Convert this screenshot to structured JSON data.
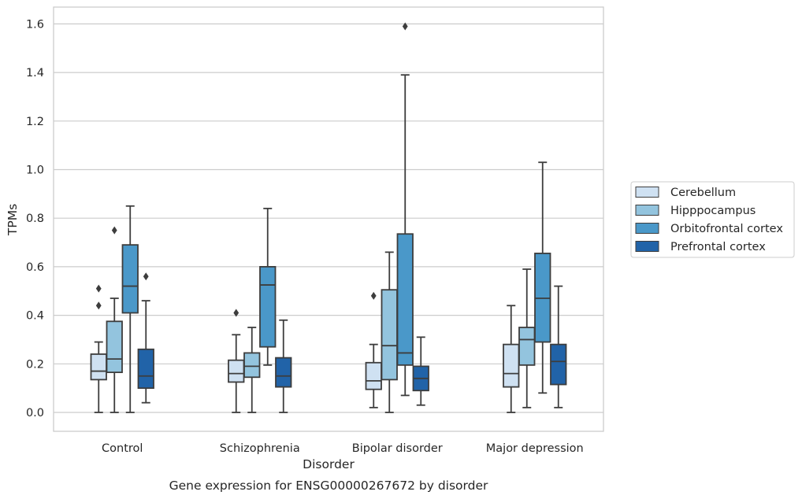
{
  "chart_data": {
    "type": "box",
    "caption": "Gene expression for ENSG00000267672 by disorder",
    "xlabel": "Disorder",
    "ylabel": "TPMs",
    "ylim": [
      -0.08,
      1.67
    ],
    "yticks": [
      0.0,
      0.2,
      0.4,
      0.6,
      0.8,
      1.0,
      1.2,
      1.4,
      1.6
    ],
    "ytick_labels": [
      "0.0",
      "0.2",
      "0.4",
      "0.6",
      "0.8",
      "1.0",
      "1.2",
      "1.4",
      "1.6"
    ],
    "grid": "horizontal",
    "legend_position": "right",
    "categories": [
      "Control",
      "Schizophrenia",
      "Bipolar disorder",
      "Major depression"
    ],
    "series": [
      {
        "name": "Cerebellum",
        "color": "#cfe1f2",
        "boxes": [
          {
            "whislo": 0.0,
            "q1": 0.135,
            "med": 0.17,
            "q3": 0.24,
            "whishi": 0.29,
            "fliers": [
              0.44,
              0.51
            ]
          },
          {
            "whislo": 0.0,
            "q1": 0.125,
            "med": 0.16,
            "q3": 0.215,
            "whishi": 0.32,
            "fliers": [
              0.41
            ]
          },
          {
            "whislo": 0.02,
            "q1": 0.095,
            "med": 0.13,
            "q3": 0.205,
            "whishi": 0.28,
            "fliers": [
              0.48
            ]
          },
          {
            "whislo": 0.0,
            "q1": 0.105,
            "med": 0.16,
            "q3": 0.28,
            "whishi": 0.44,
            "fliers": []
          }
        ]
      },
      {
        "name": "Hipppocampus",
        "color": "#93c4de",
        "boxes": [
          {
            "whislo": 0.0,
            "q1": 0.165,
            "med": 0.22,
            "q3": 0.375,
            "whishi": 0.47,
            "fliers": [
              0.75
            ]
          },
          {
            "whislo": 0.0,
            "q1": 0.145,
            "med": 0.19,
            "q3": 0.245,
            "whishi": 0.35,
            "fliers": []
          },
          {
            "whislo": 0.0,
            "q1": 0.135,
            "med": 0.275,
            "q3": 0.505,
            "whishi": 0.66,
            "fliers": []
          },
          {
            "whislo": 0.02,
            "q1": 0.195,
            "med": 0.3,
            "q3": 0.35,
            "whishi": 0.59,
            "fliers": []
          }
        ]
      },
      {
        "name": "Orbitofrontal cortex",
        "color": "#4a98c9",
        "boxes": [
          {
            "whislo": 0.0,
            "q1": 0.41,
            "med": 0.52,
            "q3": 0.69,
            "whishi": 0.85,
            "fliers": []
          },
          {
            "whislo": 0.195,
            "q1": 0.27,
            "med": 0.525,
            "q3": 0.6,
            "whishi": 0.84,
            "fliers": []
          },
          {
            "whislo": 0.07,
            "q1": 0.195,
            "med": 0.245,
            "q3": 0.735,
            "whishi": 1.39,
            "fliers": [
              1.59
            ]
          },
          {
            "whislo": 0.08,
            "q1": 0.29,
            "med": 0.47,
            "q3": 0.655,
            "whishi": 1.03,
            "fliers": []
          }
        ]
      },
      {
        "name": "Prefrontal cortex",
        "color": "#2163a8",
        "boxes": [
          {
            "whislo": 0.04,
            "q1": 0.1,
            "med": 0.15,
            "q3": 0.26,
            "whishi": 0.46,
            "fliers": [
              0.56
            ]
          },
          {
            "whislo": 0.0,
            "q1": 0.105,
            "med": 0.15,
            "q3": 0.225,
            "whishi": 0.38,
            "fliers": []
          },
          {
            "whislo": 0.03,
            "q1": 0.09,
            "med": 0.14,
            "q3": 0.19,
            "whishi": 0.31,
            "fliers": []
          },
          {
            "whislo": 0.02,
            "q1": 0.115,
            "med": 0.21,
            "q3": 0.28,
            "whishi": 0.52,
            "fliers": []
          }
        ]
      }
    ]
  }
}
